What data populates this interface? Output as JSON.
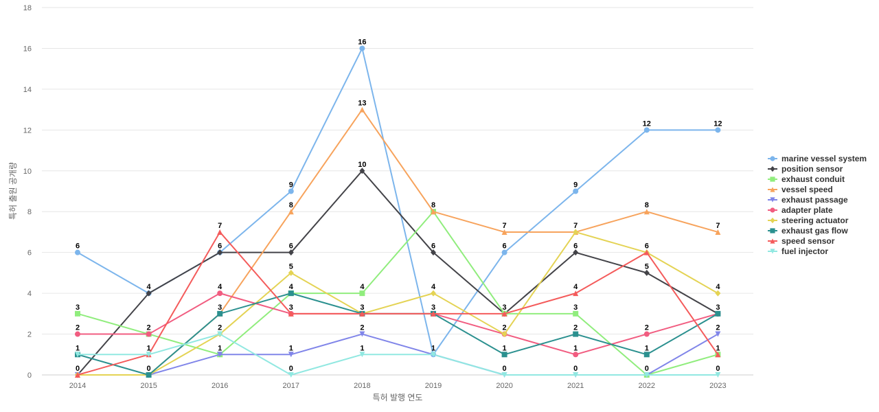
{
  "chart_data": {
    "type": "line",
    "title": "",
    "xlabel": "특허 발행 연도",
    "ylabel": "특허 출원 공개량",
    "x": [
      "2014",
      "2015",
      "2016",
      "2017",
      "2018",
      "2019",
      "2020",
      "2021",
      "2022",
      "2023"
    ],
    "ylim": [
      0,
      18
    ],
    "yticks": [
      "0",
      "2",
      "4",
      "6",
      "8",
      "10",
      "12",
      "14",
      "16",
      "18"
    ],
    "grid": true,
    "legend_position": "right",
    "series": [
      {
        "name": "marine vessel system",
        "color": "#7cb5ec",
        "marker": "circle",
        "values": [
          6,
          4,
          6,
          9,
          16,
          1,
          6,
          9,
          12,
          12
        ]
      },
      {
        "name": "position sensor",
        "color": "#434348",
        "marker": "diamond",
        "values": [
          0,
          4,
          6,
          6,
          10,
          6,
          3,
          6,
          5,
          3
        ]
      },
      {
        "name": "exhaust conduit",
        "color": "#90ed7d",
        "marker": "square",
        "values": [
          3,
          2,
          1,
          4,
          4,
          8,
          3,
          3,
          0,
          1
        ]
      },
      {
        "name": "vessel speed",
        "color": "#f7a35c",
        "marker": "triangle",
        "values": [
          0,
          0,
          3,
          8,
          13,
          8,
          7,
          7,
          8,
          7
        ]
      },
      {
        "name": "exhaust passage",
        "color": "#8085e9",
        "marker": "triangle-down",
        "values": [
          0,
          0,
          1,
          1,
          2,
          1,
          0,
          0,
          0,
          2
        ]
      },
      {
        "name": "adapter plate",
        "color": "#f15c80",
        "marker": "circle",
        "values": [
          2,
          2,
          4,
          3,
          3,
          3,
          2,
          1,
          2,
          3
        ]
      },
      {
        "name": "steering actuator",
        "color": "#e4d354",
        "marker": "diamond",
        "values": [
          0,
          0,
          2,
          5,
          3,
          4,
          2,
          7,
          6,
          4
        ]
      },
      {
        "name": "exhaust gas flow",
        "color": "#2b908f",
        "marker": "square",
        "values": [
          1,
          0,
          3,
          4,
          3,
          3,
          1,
          2,
          1,
          3
        ]
      },
      {
        "name": "speed sensor",
        "color": "#f45b5b",
        "marker": "triangle",
        "values": [
          0,
          1,
          7,
          3,
          3,
          3,
          3,
          4,
          6,
          1
        ]
      },
      {
        "name": "fuel injector",
        "color": "#91e8e1",
        "marker": "triangle-down",
        "values": [
          1,
          1,
          2,
          0,
          1,
          1,
          0,
          0,
          0,
          0
        ]
      }
    ],
    "data_labels": [
      {
        "x": "2014",
        "text": "6",
        "value": 6
      },
      {
        "x": "2014",
        "text": "3",
        "value": 3
      },
      {
        "x": "2014",
        "text": "2",
        "value": 2
      },
      {
        "x": "2014",
        "text": "1",
        "value": 1
      },
      {
        "x": "2014",
        "text": "0",
        "value": 0
      },
      {
        "x": "2015",
        "text": "4",
        "value": 4
      },
      {
        "x": "2015",
        "text": "2",
        "value": 2
      },
      {
        "x": "2015",
        "text": "1",
        "value": 1
      },
      {
        "x": "2015",
        "text": "0",
        "value": 0
      },
      {
        "x": "2016",
        "text": "7",
        "value": 7
      },
      {
        "x": "2016",
        "text": "6",
        "value": 6
      },
      {
        "x": "2016",
        "text": "4",
        "value": 4
      },
      {
        "x": "2016",
        "text": "3",
        "value": 3
      },
      {
        "x": "2016",
        "text": "2",
        "value": 2
      },
      {
        "x": "2016",
        "text": "1",
        "value": 1
      },
      {
        "x": "2017",
        "text": "9",
        "value": 9
      },
      {
        "x": "2017",
        "text": "8",
        "value": 8
      },
      {
        "x": "2017",
        "text": "6",
        "value": 6
      },
      {
        "x": "2017",
        "text": "5",
        "value": 5
      },
      {
        "x": "2017",
        "text": "4",
        "value": 4
      },
      {
        "x": "2017",
        "text": "3",
        "value": 3
      },
      {
        "x": "2017",
        "text": "1",
        "value": 1
      },
      {
        "x": "2017",
        "text": "0",
        "value": 0
      },
      {
        "x": "2018",
        "text": "16",
        "value": 16
      },
      {
        "x": "2018",
        "text": "13",
        "value": 13
      },
      {
        "x": "2018",
        "text": "10",
        "value": 10
      },
      {
        "x": "2018",
        "text": "4",
        "value": 4
      },
      {
        "x": "2018",
        "text": "3",
        "value": 3
      },
      {
        "x": "2018",
        "text": "2",
        "value": 2
      },
      {
        "x": "2018",
        "text": "1",
        "value": 1
      },
      {
        "x": "2019",
        "text": "8",
        "value": 8
      },
      {
        "x": "2019",
        "text": "6",
        "value": 6
      },
      {
        "x": "2019",
        "text": "4",
        "value": 4
      },
      {
        "x": "2019",
        "text": "3",
        "value": 3
      },
      {
        "x": "2019",
        "text": "1",
        "value": 1
      },
      {
        "x": "2020",
        "text": "7",
        "value": 7
      },
      {
        "x": "2020",
        "text": "6",
        "value": 6
      },
      {
        "x": "2020",
        "text": "3",
        "value": 3
      },
      {
        "x": "2020",
        "text": "2",
        "value": 2
      },
      {
        "x": "2020",
        "text": "1",
        "value": 1
      },
      {
        "x": "2020",
        "text": "0",
        "value": 0
      },
      {
        "x": "2021",
        "text": "9",
        "value": 9
      },
      {
        "x": "2021",
        "text": "7",
        "value": 7
      },
      {
        "x": "2021",
        "text": "6",
        "value": 6
      },
      {
        "x": "2021",
        "text": "4",
        "value": 4
      },
      {
        "x": "2021",
        "text": "3",
        "value": 3
      },
      {
        "x": "2021",
        "text": "2",
        "value": 2
      },
      {
        "x": "2021",
        "text": "1",
        "value": 1
      },
      {
        "x": "2021",
        "text": "0",
        "value": 0
      },
      {
        "x": "2022",
        "text": "12",
        "value": 12
      },
      {
        "x": "2022",
        "text": "8",
        "value": 8
      },
      {
        "x": "2022",
        "text": "6",
        "value": 6
      },
      {
        "x": "2022",
        "text": "5",
        "value": 5
      },
      {
        "x": "2022",
        "text": "2",
        "value": 2
      },
      {
        "x": "2022",
        "text": "1",
        "value": 1
      },
      {
        "x": "2022",
        "text": "0",
        "value": 0
      },
      {
        "x": "2023",
        "text": "12",
        "value": 12
      },
      {
        "x": "2023",
        "text": "7",
        "value": 7
      },
      {
        "x": "2023",
        "text": "4",
        "value": 4
      },
      {
        "x": "2023",
        "text": "3",
        "value": 3
      },
      {
        "x": "2023",
        "text": "2",
        "value": 2
      },
      {
        "x": "2023",
        "text": "1",
        "value": 1
      },
      {
        "x": "2023",
        "text": "0",
        "value": 0
      }
    ]
  }
}
